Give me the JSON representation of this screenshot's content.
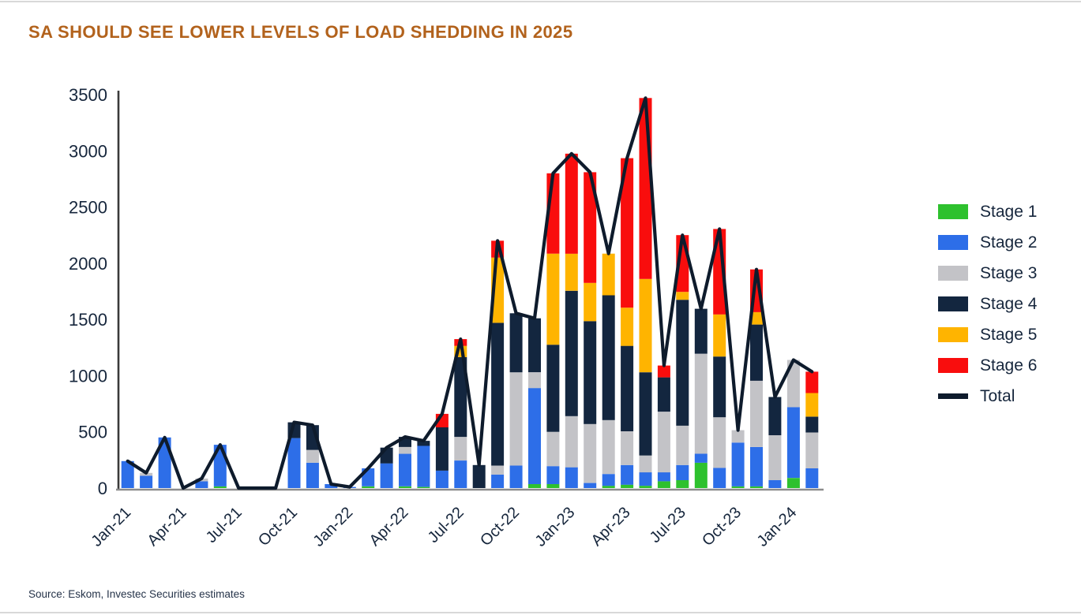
{
  "page": {
    "source": "Source: Eskom, Investec Securities estimates"
  },
  "colors": {
    "title": "#b2621c",
    "axis_text": "#16263c",
    "axis_y_line": "#3a3a3a",
    "axis_x_line": "#8c8c8c",
    "stage1": "#2ec12e",
    "stage2": "#2d6ee8",
    "stage3": "#c3c3c7",
    "stage4": "#13263f",
    "stage5": "#ffb400",
    "stage6": "#f90d0d",
    "total": "#0e1b2c"
  },
  "legend": [
    {
      "label": "Stage 1",
      "color": "#2ec12e",
      "type": "box"
    },
    {
      "label": "Stage 2",
      "color": "#2d6ee8",
      "type": "box"
    },
    {
      "label": "Stage 3",
      "color": "#c3c3c7",
      "type": "box"
    },
    {
      "label": "Stage 4",
      "color": "#13263f",
      "type": "box"
    },
    {
      "label": "Stage 5",
      "color": "#ffb400",
      "type": "box"
    },
    {
      "label": "Stage 6",
      "color": "#f90d0d",
      "type": "box"
    },
    {
      "label": "Total",
      "color": "#0e1b2c",
      "type": "line"
    }
  ],
  "chart_data": {
    "type": "bar",
    "subtype": "stacked-bars-with-total-line",
    "title": "SA SHOULD SEE LOWER LEVELS OF LOAD SHEDDING IN 2025",
    "xlabel": "",
    "ylabel": "",
    "ylim": [
      0,
      3500
    ],
    "yticks": [
      0,
      500,
      1000,
      1500,
      2000,
      2500,
      3000,
      3500
    ],
    "grid": false,
    "legend_position": "right",
    "x_label_every": 3,
    "x_label_rotation": -45,
    "total_color": "#0e1b2c",
    "layout": {
      "plotLeft": 150,
      "plotRight": 1040,
      "plotTop": 120,
      "plotBottom": 619
    },
    "categories": [
      "Jan-21",
      "Feb-21",
      "Mar-21",
      "Apr-21",
      "May-21",
      "Jun-21",
      "Jul-21",
      "Aug-21",
      "Sep-21",
      "Oct-21",
      "Nov-21",
      "Dec-21",
      "Jan-22",
      "Feb-22",
      "Mar-22",
      "Apr-22",
      "May-22",
      "Jun-22",
      "Jul-22",
      "Aug-22",
      "Sep-22",
      "Oct-22",
      "Nov-22",
      "Dec-22",
      "Jan-23",
      "Feb-23",
      "Mar-23",
      "Apr-23",
      "May-23",
      "Jun-23",
      "Jul-23",
      "Aug-23",
      "Sep-23",
      "Oct-23",
      "Nov-23",
      "Dec-23",
      "Jan-24",
      "Feb-24"
    ],
    "series": [
      {
        "name": "Stage 1",
        "color": "#2ec12e",
        "values": [
          0,
          0,
          0,
          0,
          0,
          15,
          0,
          0,
          0,
          0,
          0,
          0,
          0,
          15,
          0,
          15,
          10,
          0,
          0,
          0,
          0,
          0,
          35,
          35,
          0,
          0,
          20,
          30,
          20,
          60,
          70,
          225,
          0,
          15,
          15,
          0,
          90,
          0
        ]
      },
      {
        "name": "Stage 2",
        "color": "#2d6ee8",
        "values": [
          240,
          110,
          450,
          0,
          60,
          370,
          0,
          0,
          0,
          445,
          225,
          35,
          10,
          160,
          220,
          290,
          365,
          155,
          245,
          0,
          120,
          200,
          855,
          160,
          185,
          45,
          105,
          175,
          120,
          80,
          135,
          80,
          180,
          390,
          350,
          70,
          630,
          175
        ]
      },
      {
        "name": "Stage 3",
        "color": "#c3c3c7",
        "values": [
          0,
          25,
          0,
          0,
          25,
          0,
          0,
          0,
          0,
          0,
          115,
          0,
          0,
          0,
          0,
          60,
          0,
          0,
          210,
          0,
          80,
          830,
          140,
          305,
          455,
          525,
          480,
          300,
          150,
          540,
          350,
          890,
          450,
          110,
          590,
          400,
          420,
          320
        ]
      },
      {
        "name": "Stage 4",
        "color": "#13263f",
        "values": [
          0,
          0,
          0,
          0,
          0,
          0,
          0,
          0,
          0,
          140,
          220,
          0,
          0,
          0,
          140,
          90,
          45,
          385,
          710,
          205,
          1270,
          525,
          480,
          775,
          1115,
          915,
          1110,
          760,
          740,
          305,
          1120,
          400,
          540,
          0,
          500,
          340,
          0,
          140
        ]
      },
      {
        "name": "Stage 5",
        "color": "#ffb400",
        "values": [
          0,
          0,
          0,
          0,
          0,
          0,
          0,
          0,
          0,
          0,
          0,
          0,
          0,
          0,
          0,
          0,
          0,
          0,
          100,
          0,
          580,
          0,
          0,
          810,
          330,
          340,
          370,
          340,
          830,
          0,
          70,
          0,
          375,
          0,
          110,
          0,
          0,
          210
        ]
      },
      {
        "name": "Stage 6",
        "color": "#f90d0d",
        "values": [
          0,
          0,
          0,
          0,
          0,
          0,
          0,
          0,
          0,
          0,
          0,
          0,
          0,
          0,
          0,
          0,
          0,
          120,
          60,
          0,
          150,
          0,
          0,
          715,
          890,
          985,
          0,
          1330,
          1610,
          105,
          505,
          0,
          760,
          0,
          380,
          0,
          0,
          190
        ]
      }
    ],
    "totals": [
      240,
      135,
      450,
      0,
      85,
      385,
      0,
      0,
      0,
      585,
      560,
      35,
      10,
      175,
      360,
      455,
      420,
      660,
      1325,
      205,
      2200,
      1555,
      1510,
      2800,
      2975,
      2810,
      2085,
      2935,
      3470,
      1090,
      2250,
      1595,
      2305,
      515,
      1945,
      810,
      1140,
      1035
    ]
  }
}
